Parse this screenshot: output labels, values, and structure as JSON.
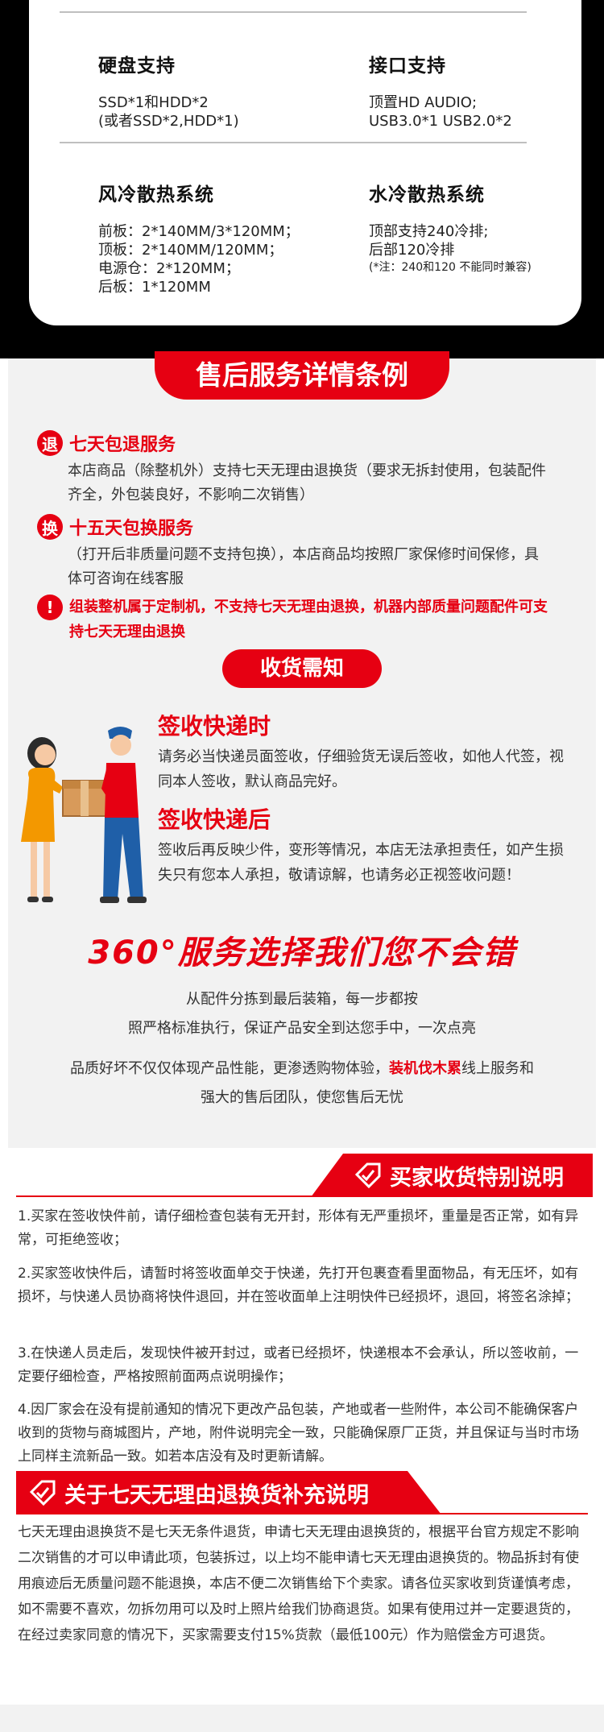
{
  "specs": [
    {
      "title": "硬盘支持",
      "text": "SSD*1和HDD*2\n(或者SSD*2,HDD*1)"
    },
    {
      "title": "接口支持",
      "text": "顶置HD AUDIO;\nUSB3.0*1 USB2.0*2"
    },
    {
      "title": "风冷散热系统",
      "text": "前板：2*140MM/3*120MM；\n顶板：2*140MM/120MM；\n电源仓：2*120MM；\n后板：1*120MM"
    },
    {
      "title": "水冷散热系统",
      "text": "顶部支持240冷排;\n后部120冷排",
      "note": "(*注：240和120 不能同时兼容)"
    }
  ],
  "after_sales": {
    "banner": "售后服务详情条例",
    "return": {
      "badge": "退",
      "title": "七天包退服务",
      "desc": "本店商品（除整机外）支持七天无理由退换货（要求无拆封使用，包装配件齐全，外包装良好，不影响二次销售）"
    },
    "exchange": {
      "badge": "换",
      "title": "十五天包换服务",
      "desc": "（打开后非质量问题不支持包换），本店商品均按照厂家保修时间保修，具体可咨询在线客服"
    },
    "warning": {
      "badge": "!",
      "text": "组装整机属于定制机，不支持七天无理由退换，机器内部质量问题配件可支持七天无理由退换"
    }
  },
  "receiving": {
    "banner": "收货需知",
    "on_receipt": {
      "title": "签收快递时",
      "desc": "请务必当快递员面签收，仔细验货无误后签收，如他人代签，视同本人签收，默认商品完好。"
    },
    "after_receipt": {
      "title": "签收快递后",
      "desc": "签收后再反映少件，变形等情况，本店无法承担责任，如产生损失只有您本人承担，敬请谅解，也请务必正视签收问题！"
    }
  },
  "slogan": {
    "title": "360°服务选择我们您不会错",
    "line1": "从配件分拣到最后装箱，每一步都按",
    "line2": "照严格标准执行，保证产品安全到达您手中，一次点亮",
    "line3_a": "品质好坏不仅仅体现产品性能，更渗透购物体验，",
    "line3_red": "装机伐木累",
    "line3_b": "线上服务和",
    "line4": "强大的售后团队，使您售后无忧"
  },
  "buyer_notes": {
    "title": "买家收货特别说明",
    "items": [
      "1.买家在签收快件前，请仔细检查包装有无开封，形体有无严重损坏，重量是否正常，如有异常，可拒绝签收；",
      "2.买家签收快件后，请暂时将签收面单交于快递，先打开包裹查看里面物品，有无压坏，如有损坏，与快递人员协商将快件退回，并在签收面单上注明快件已经损坏，退回，将签名涂掉；",
      "3.在快递人员走后，发现快件被开封过，或者已经损坏，快递根本不会承认，所以签收前，一定要仔细检查，严格按照前面两点说明操作；",
      "4.因厂家会在没有提前通知的情况下更改产品包装，产地或者一些附件，本公司不能确保客户收到的货物与商城图片，产地，附件说明完全一致，只能确保原厂正货，并且保证与当时市场上同样主流新品一致。如若本店没有及时更新请解。"
    ]
  },
  "supplement": {
    "title": "关于七天无理由退换货补充说明",
    "text": "七天无理由退换货不是七天无条件退货，申请七天无理由退换货的，根据平台官方规定不影响二次销售的才可以申请此项，包装拆过，以上均不能申请七天无理由退换货的。物品拆封有使用痕迹后无质量问题不能退换，本店不便二次销售给下个卖家。请各位买家收到货谨慎考虑，如不需要不喜欢，勿拆勿用可以及时上照片给我们协商退货。如果有使用过并一定要退货的，在经过卖家同意的情况下，买家需要支付15%货款（最低100元）作为赔偿金方可退货。"
  }
}
